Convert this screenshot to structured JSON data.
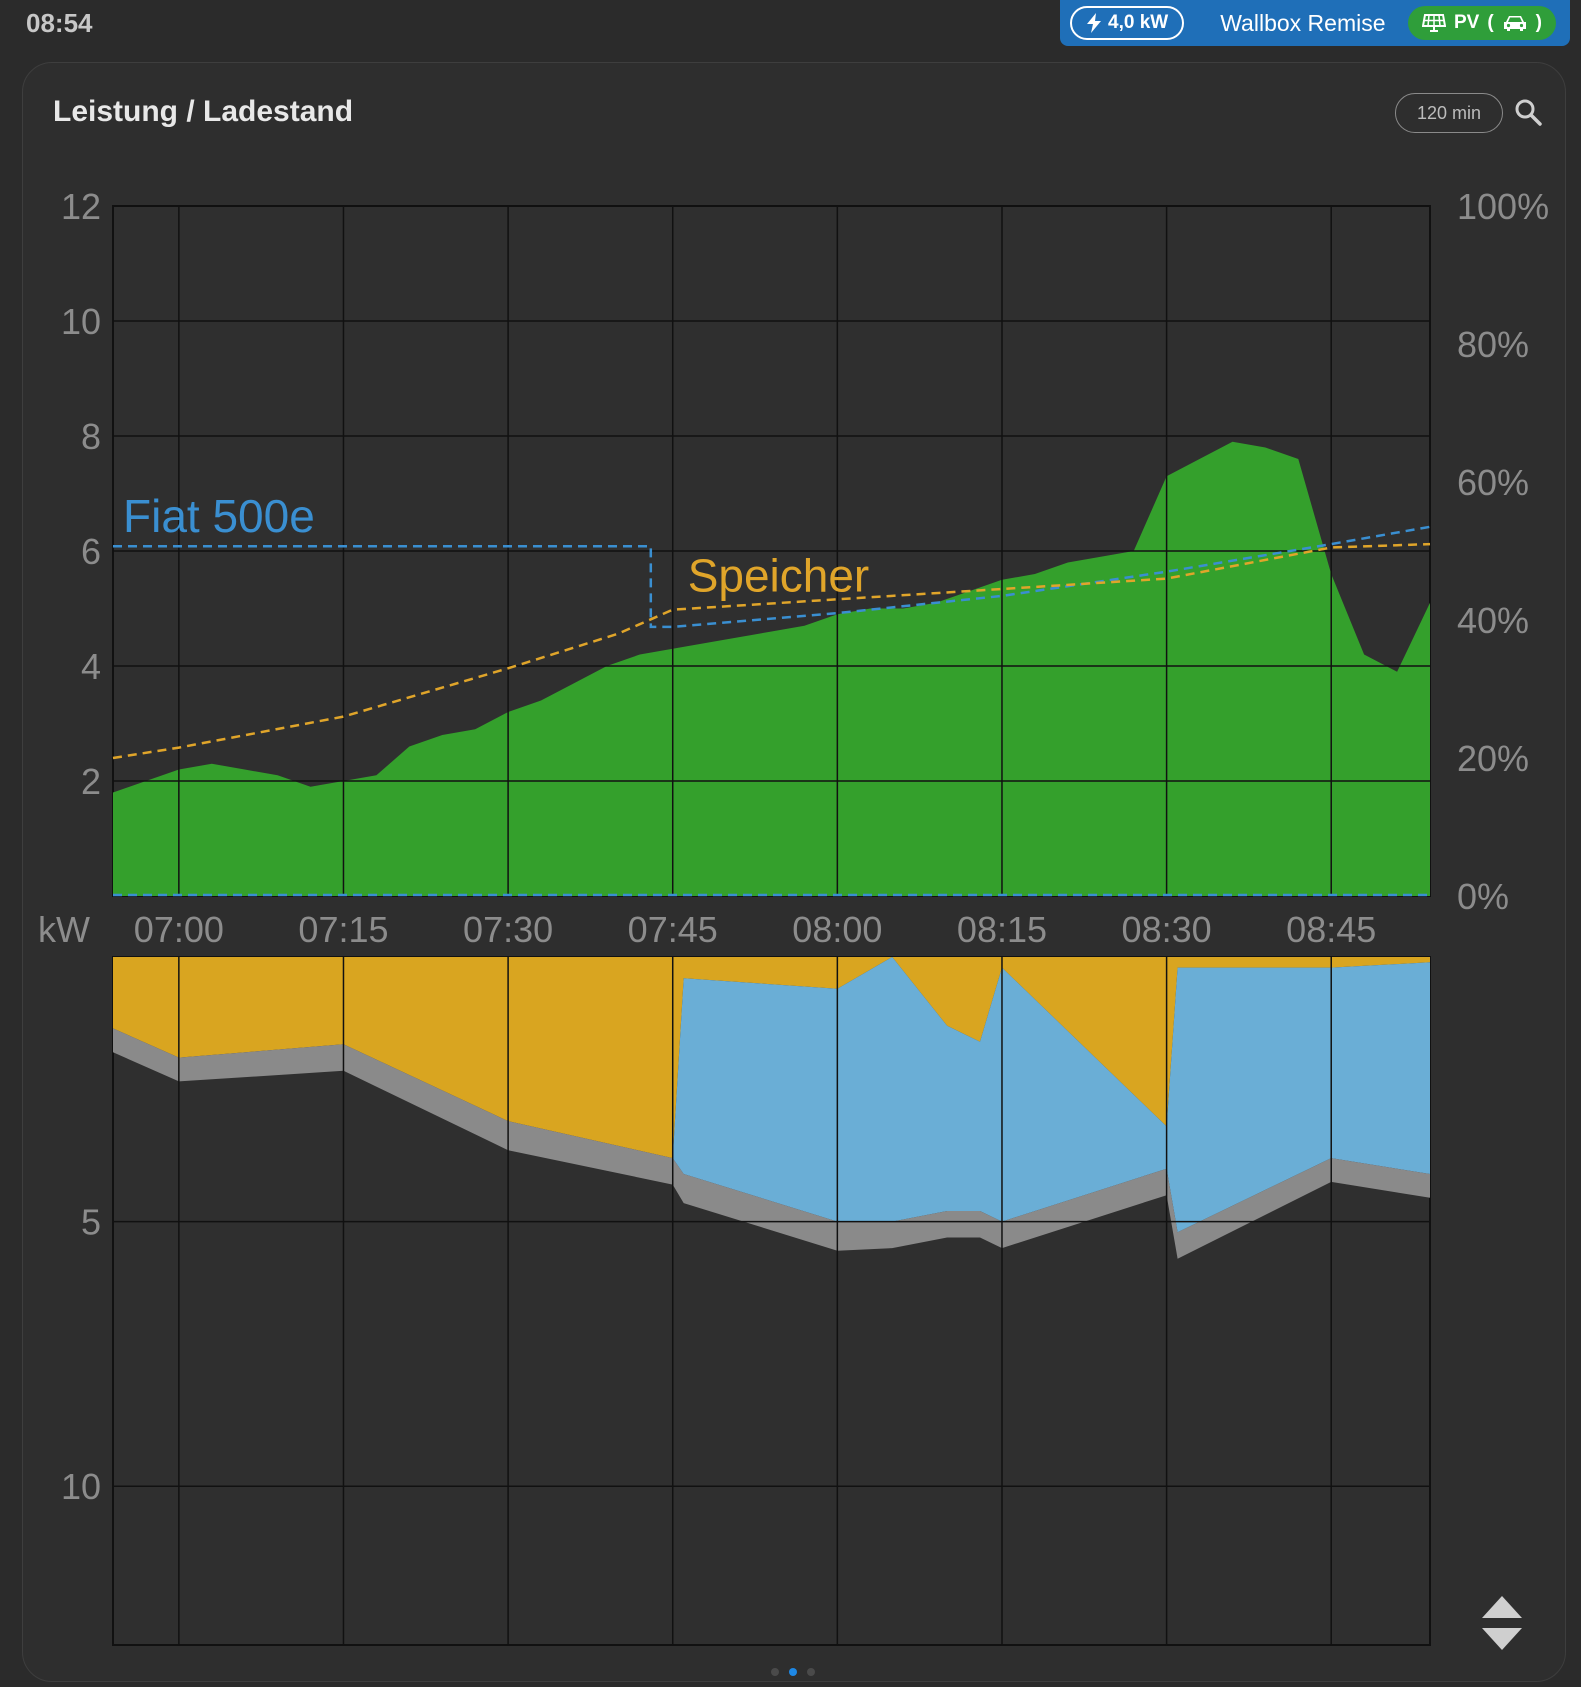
{
  "status_bar": {
    "time": "08:54"
  },
  "wallbox": {
    "power": "4,0 kW",
    "name": "Wallbox Remise",
    "mode": "PV",
    "mode_icons": [
      "solar-panel-icon",
      "car-icon"
    ],
    "color": "#1f6fb8",
    "mode_color": "#2f9e3a"
  },
  "card": {
    "title": "Leistung / Ladestand",
    "range": "120 min",
    "search_icon": "search-icon"
  },
  "pager": {
    "pages": 3,
    "active_index": 1
  },
  "chart_data": [
    {
      "type": "area",
      "unit_label": "kW",
      "y_left_ticks": [
        "2",
        "4",
        "6",
        "8",
        "10",
        "12"
      ],
      "y_right_ticks": [
        "0%",
        "20%",
        "40%",
        "60%",
        "80%",
        "100%"
      ],
      "x_ticks": [
        "07:00",
        "07:15",
        "07:30",
        "07:45",
        "08:00",
        "08:15",
        "08:30",
        "08:45"
      ],
      "ylim": [
        0,
        12
      ],
      "ylim_right": [
        0,
        100
      ],
      "grid": true,
      "series": [
        {
          "name": "",
          "color": "#34a02c",
          "x": [
            "06:54",
            "06:57",
            "07:00",
            "07:03",
            "07:06",
            "07:09",
            "07:12",
            "07:15",
            "07:18",
            "07:21",
            "07:24",
            "07:27",
            "07:30",
            "07:33",
            "07:36",
            "07:39",
            "07:42",
            "07:45",
            "07:48",
            "07:51",
            "07:54",
            "07:57",
            "08:00",
            "08:03",
            "08:06",
            "08:09",
            "08:12",
            "08:15",
            "08:18",
            "08:21",
            "08:24",
            "08:27",
            "08:30",
            "08:33",
            "08:36",
            "08:39",
            "08:42",
            "08:45",
            "08:48",
            "08:51",
            "08:54"
          ],
          "values": [
            1.8,
            2.0,
            2.2,
            2.3,
            2.2,
            2.1,
            1.9,
            2.0,
            2.1,
            2.6,
            2.8,
            2.9,
            3.2,
            3.4,
            3.7,
            4.0,
            4.2,
            4.3,
            4.4,
            4.5,
            4.6,
            4.7,
            4.9,
            5.0,
            5.0,
            5.1,
            5.3,
            5.5,
            5.6,
            5.8,
            5.9,
            6.0,
            7.3,
            7.6,
            7.9,
            7.8,
            7.6,
            5.6,
            4.2,
            3.9,
            5.1
          ]
        }
      ],
      "soc_lines": [
        {
          "name": "Fiat 500e",
          "color": "#3a8fd1",
          "x": [
            "06:54",
            "07:43",
            "07:43",
            "07:45",
            "08:00",
            "08:15",
            "08:30",
            "08:45",
            "08:54"
          ],
          "values": [
            50.7,
            50.7,
            39.0,
            39.0,
            41.0,
            43.5,
            47.0,
            51.0,
            53.5
          ]
        },
        {
          "name": "Speicher",
          "color": "#e0a52a",
          "x": [
            "06:54",
            "07:00",
            "07:15",
            "07:30",
            "07:40",
            "07:45",
            "08:00",
            "08:15",
            "08:30",
            "08:45",
            "08:54"
          ],
          "values": [
            20,
            21.5,
            26,
            33,
            38,
            41.5,
            43,
            44.5,
            46,
            50.5,
            51
          ]
        }
      ]
    },
    {
      "type": "area",
      "y_left_ticks": [
        "5",
        "10"
      ],
      "x_ticks": [
        "07:00",
        "07:15",
        "07:30",
        "07:45",
        "08:00",
        "08:15",
        "08:30",
        "08:45"
      ],
      "ylim": [
        0,
        13
      ],
      "grid": true,
      "inverted": true,
      "series": [
        {
          "name": "",
          "color": "#d9a520",
          "x": [
            "06:54",
            "07:00",
            "07:15",
            "07:30",
            "07:45",
            "07:46",
            "08:00",
            "08:05",
            "08:10",
            "08:13",
            "08:15",
            "08:30",
            "08:31",
            "08:45",
            "08:54"
          ],
          "values": [
            1.35,
            1.9,
            1.65,
            3.1,
            3.8,
            0.4,
            0.6,
            0.0,
            1.3,
            1.6,
            0.2,
            3.2,
            0.2,
            0.2,
            0.1
          ]
        },
        {
          "name": "",
          "color": "#6aaed6",
          "x": [
            "06:54",
            "07:00",
            "07:15",
            "07:30",
            "07:45",
            "07:46",
            "08:00",
            "08:05",
            "08:10",
            "08:13",
            "08:15",
            "08:30",
            "08:31",
            "08:45",
            "08:54"
          ],
          "values": [
            0,
            0,
            0,
            0,
            0,
            3.7,
            4.4,
            5.0,
            3.5,
            3.2,
            4.8,
            0.8,
            5.0,
            3.6,
            4.0
          ]
        },
        {
          "name": "",
          "color": "#8a8a8a",
          "x": [
            "06:54",
            "07:00",
            "07:15",
            "07:30",
            "07:45",
            "07:46",
            "08:00",
            "08:05",
            "08:10",
            "08:13",
            "08:15",
            "08:30",
            "08:31",
            "08:45",
            "08:54"
          ],
          "values": [
            0.45,
            0.45,
            0.5,
            0.55,
            0.5,
            0.55,
            0.55,
            0.5,
            0.5,
            0.5,
            0.5,
            0.5,
            0.5,
            0.45,
            0.45
          ]
        }
      ]
    }
  ]
}
